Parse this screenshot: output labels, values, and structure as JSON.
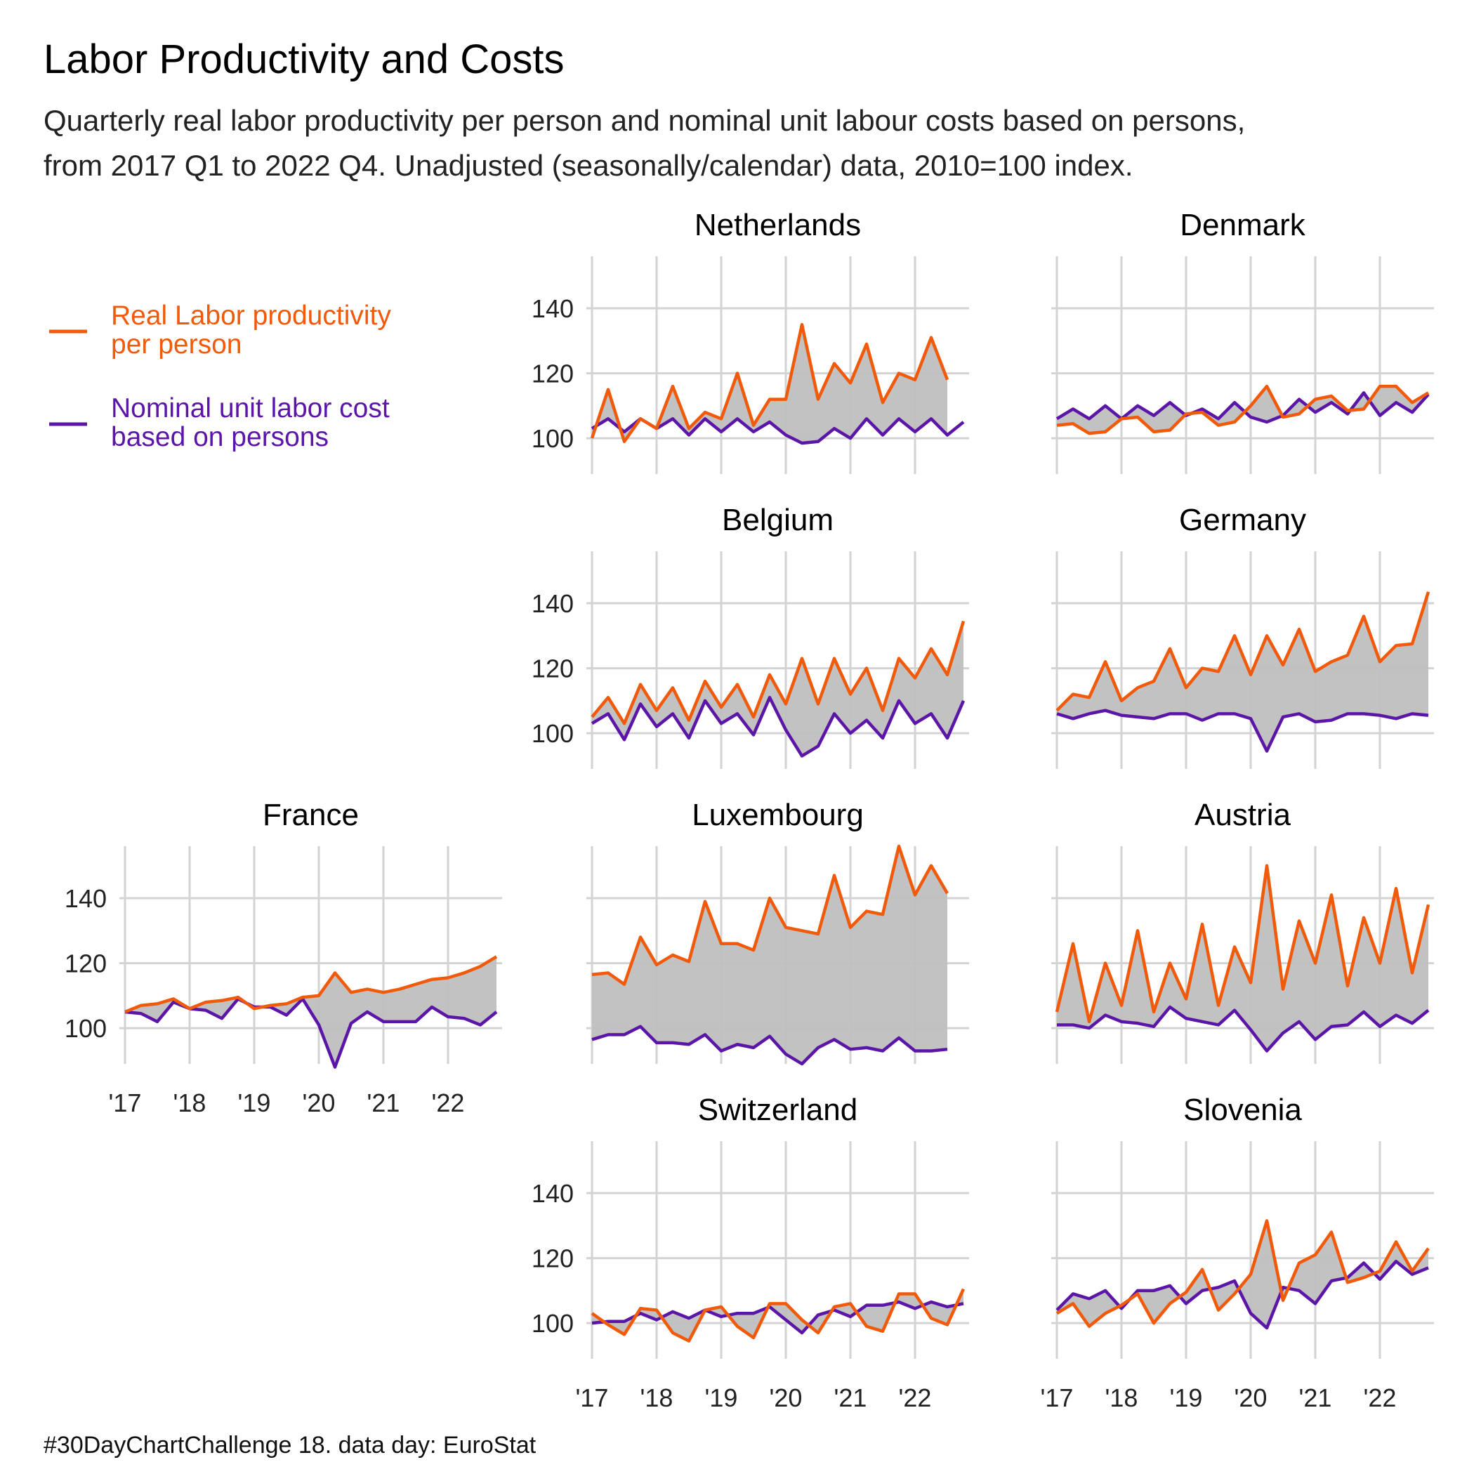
{
  "title": "Labor Productivity and Costs",
  "subtitle_lines": [
    "Quarterly real labor productivity per person and nominal unit labour costs based on persons,",
    "from 2017 Q1 to 2022 Q4. Unadjusted (seasonally/calendar) data, 2010=100 index."
  ],
  "caption": "#30DayChartChallenge 18. data day: EuroStat",
  "legend": [
    {
      "label_lines": [
        "Real Labor productivity",
        "per person"
      ],
      "color": "#F05A0A"
    },
    {
      "label_lines": [
        "Nominal unit labor cost",
        "based on persons"
      ],
      "color": "#5B16A8"
    }
  ],
  "colors": {
    "productivity": "#F05A0A",
    "labor_cost": "#5B16A8",
    "fill": "#bfbfbf",
    "grid": "#d3d3d3"
  },
  "chart_data": {
    "type": "line",
    "x_tick_labels": [
      "'17",
      "'18",
      "'19",
      "'20",
      "'21",
      "'22"
    ],
    "x_ticks": [
      2017,
      2018,
      2019,
      2020,
      2021,
      2022
    ],
    "x_range": [
      2017,
      2022.75
    ],
    "y_ticks": [
      100,
      120,
      140
    ],
    "y_range": [
      89,
      156
    ],
    "grid": true,
    "series_names": [
      "Real Labor productivity per person",
      "Nominal unit labor cost based on persons"
    ],
    "facets": [
      {
        "name": "Netherlands",
        "row": 0,
        "col": 1,
        "productivity": [
          100,
          115,
          99,
          106,
          103,
          116,
          103,
          108,
          106,
          120,
          104,
          112,
          112,
          135,
          112,
          123,
          117,
          129,
          111,
          120,
          118,
          131,
          118,
          null
        ],
        "labor_cost": [
          103,
          106,
          102,
          106,
          103,
          106,
          101,
          106,
          102,
          106,
          102,
          105,
          101,
          98.5,
          99,
          103,
          100,
          106,
          101,
          106,
          102,
          106,
          101,
          105
        ]
      },
      {
        "name": "Denmark",
        "row": 0,
        "col": 2,
        "productivity": [
          104,
          104.5,
          101.5,
          102,
          106,
          106.5,
          102,
          102.5,
          107.5,
          108,
          104,
          105,
          110,
          116,
          106.5,
          107.5,
          112,
          113,
          108.5,
          109,
          116,
          116,
          111,
          114
        ],
        "labor_cost": [
          106,
          109,
          106,
          110,
          106,
          110,
          107,
          111,
          107,
          109,
          106,
          111,
          106.5,
          105,
          107,
          112,
          108,
          111,
          107.5,
          114,
          107,
          111,
          108,
          113.5
        ]
      },
      {
        "name": "Belgium",
        "row": 1,
        "col": 1,
        "productivity": [
          105,
          111,
          103,
          115,
          107,
          114,
          104,
          116,
          108,
          115,
          105,
          118,
          109,
          123,
          109,
          123,
          112,
          120,
          107,
          123,
          117,
          126,
          118,
          134.5
        ],
        "labor_cost": [
          103,
          106,
          98,
          109,
          102,
          106,
          98.5,
          110,
          103,
          106,
          99.5,
          111,
          101,
          93,
          96,
          106,
          100,
          104,
          98.5,
          110,
          103,
          106,
          98.5,
          110
        ]
      },
      {
        "name": "Germany",
        "row": 1,
        "col": 2,
        "productivity": [
          107,
          112,
          111,
          122,
          110,
          114,
          116,
          126,
          114,
          120,
          119,
          130,
          118,
          130,
          121,
          132,
          119,
          122,
          124,
          136,
          122,
          127,
          127.5,
          143.5
        ],
        "labor_cost": [
          106,
          104.5,
          106,
          107,
          105.5,
          105,
          104.5,
          106,
          106,
          104,
          106,
          106,
          104.5,
          94.5,
          105,
          106,
          103.5,
          104,
          106,
          106,
          105.5,
          104.5,
          106,
          105.5
        ]
      },
      {
        "name": "France",
        "row": 2,
        "col": 0,
        "show_x_axis": true,
        "productivity": [
          105,
          107,
          107.5,
          109,
          106,
          108,
          108.5,
          109.5,
          106,
          107,
          107.5,
          109.5,
          110,
          117,
          111,
          112,
          111,
          112,
          113.5,
          115,
          115.5,
          117,
          119,
          122
        ],
        "labor_cost": [
          105,
          104.5,
          102,
          108,
          106,
          105.5,
          103,
          109,
          106.5,
          106.5,
          104,
          109,
          101,
          88,
          101.5,
          105,
          102,
          102,
          102,
          106.5,
          103.5,
          103,
          101,
          105
        ]
      },
      {
        "name": "Luxembourg",
        "row": 2,
        "col": 1,
        "productivity": [
          116.5,
          117,
          113.5,
          128,
          119.5,
          122.5,
          120.5,
          139,
          126,
          126,
          124,
          140,
          131,
          130,
          129,
          147,
          131,
          136,
          135,
          156,
          141,
          150,
          141.5,
          null
        ],
        "labor_cost": [
          96.5,
          98,
          98,
          100.5,
          95.5,
          95.5,
          95,
          98,
          93,
          95,
          94,
          97.5,
          92,
          89,
          94,
          96.5,
          93.5,
          94,
          93,
          97,
          93,
          93,
          93.5,
          null
        ]
      },
      {
        "name": "Austria",
        "row": 2,
        "col": 2,
        "productivity": [
          105,
          126,
          102,
          120,
          107,
          130,
          105,
          120,
          109,
          132,
          107,
          125,
          114,
          150,
          112,
          133,
          120,
          141,
          113,
          134,
          120,
          143,
          117,
          138
        ],
        "labor_cost": [
          101,
          101,
          100,
          104,
          102,
          101.5,
          100.5,
          106.5,
          103,
          102,
          101,
          105.5,
          99.5,
          93,
          98.5,
          102,
          96.5,
          100.5,
          101,
          105,
          100.5,
          104,
          101.5,
          105.5
        ]
      },
      {
        "name": "Switzerland",
        "row": 3,
        "col": 1,
        "show_x_axis": true,
        "productivity": [
          103,
          99.5,
          96.5,
          104.5,
          104,
          97,
          94.5,
          104,
          105,
          99,
          95.5,
          106,
          106,
          101,
          97,
          105,
          106,
          99,
          97.5,
          109,
          109,
          101.5,
          99.5,
          110.5
        ],
        "labor_cost": [
          100,
          100.5,
          100.5,
          103,
          101,
          103.5,
          101.5,
          104,
          102,
          103,
          103,
          105,
          101,
          97,
          102.5,
          104,
          102,
          105.5,
          105.5,
          106.5,
          104.5,
          106.5,
          105,
          106
        ]
      },
      {
        "name": "Slovenia",
        "row": 3,
        "col": 2,
        "show_x_axis": true,
        "productivity": [
          103,
          106,
          99,
          103,
          105.5,
          109,
          100,
          106,
          109.5,
          116.5,
          104,
          109,
          115,
          131.5,
          107,
          118.5,
          121,
          128,
          112.5,
          114,
          116,
          125,
          116,
          123
        ],
        "labor_cost": [
          104,
          109,
          107.5,
          110,
          104.5,
          110,
          110,
          111.5,
          106,
          110,
          111,
          113,
          103,
          98.5,
          111,
          110,
          106,
          113,
          114,
          118.5,
          113.5,
          119,
          115,
          117
        ]
      }
    ]
  }
}
